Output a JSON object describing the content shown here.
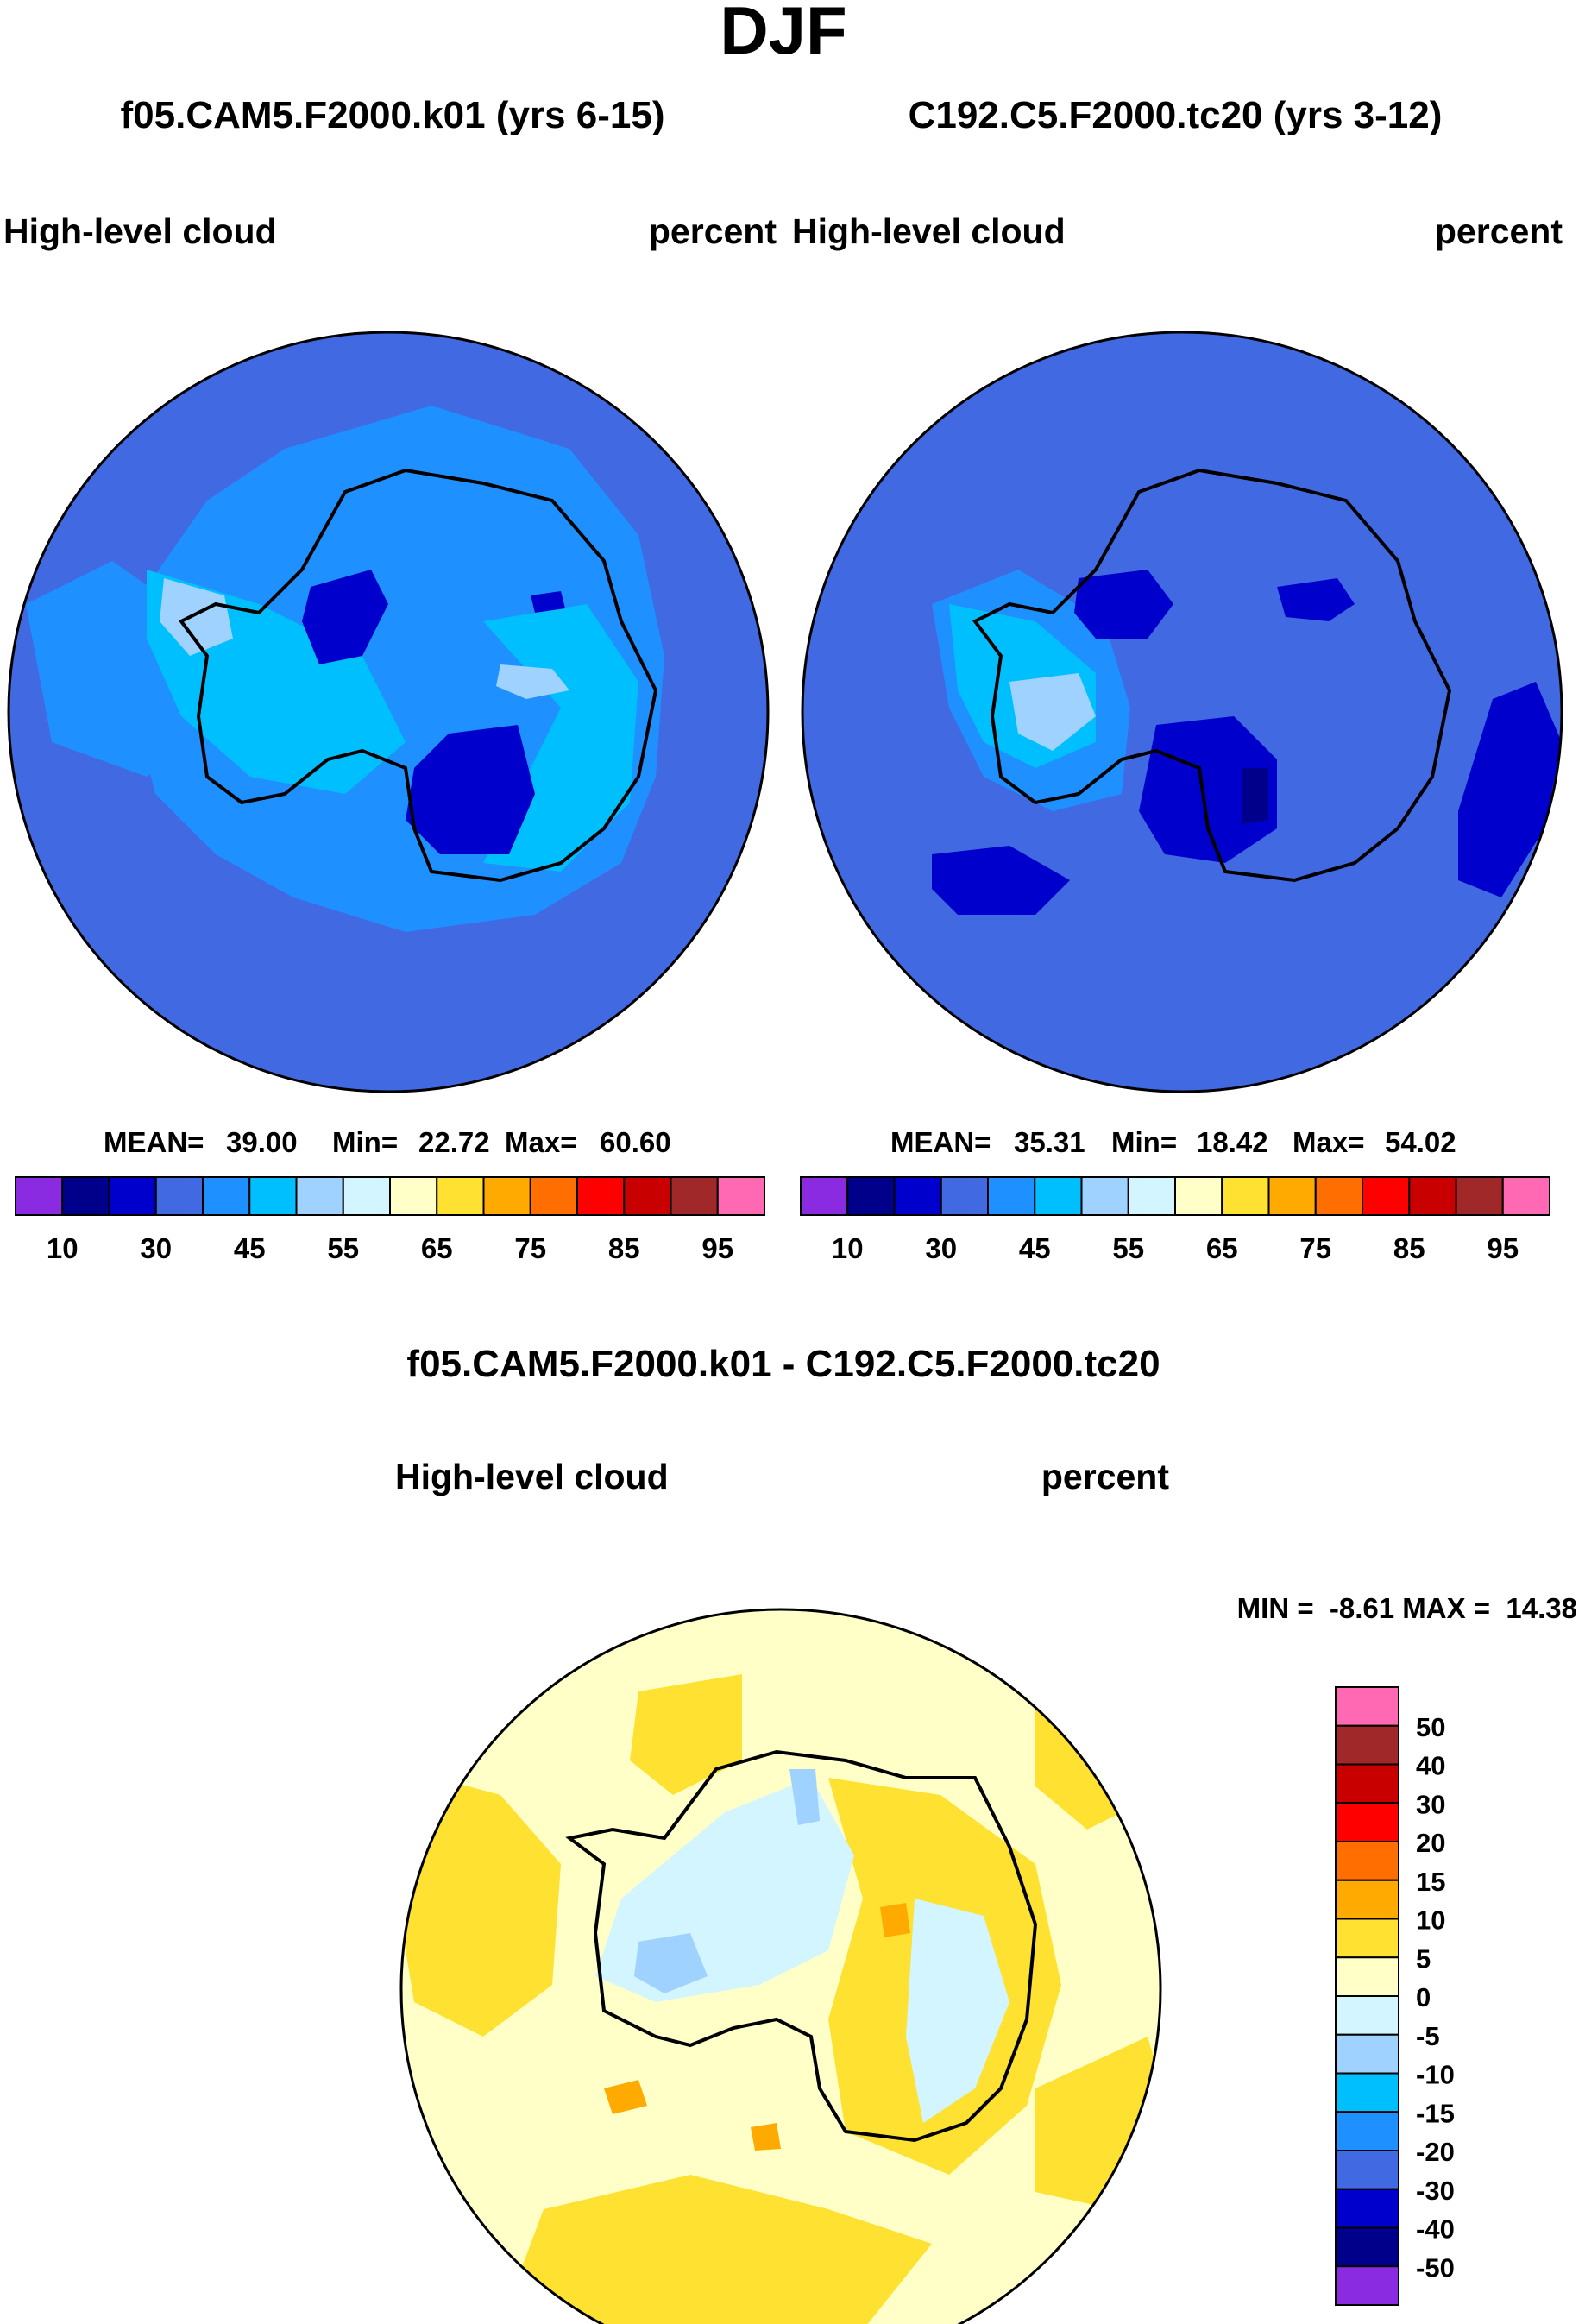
{
  "title": "DJF",
  "chart_data": [
    {
      "type": "heatmap",
      "case": "f05.CAM5.F2000.k01 (yrs 6-15)",
      "variable": "High-level cloud",
      "units": "percent",
      "projection": "south polar stereographic",
      "stats": {
        "mean_label": "MEAN=",
        "mean": "39.00",
        "min_label": "Min=",
        "min": "22.72",
        "max_label": "Max=",
        "max": "60.60"
      },
      "levels": [
        10,
        30,
        45,
        55,
        65,
        75,
        85,
        95
      ],
      "colorbar_labels": [
        "10",
        "30",
        "45",
        "55",
        "65",
        "75",
        "85",
        "95"
      ]
    },
    {
      "type": "heatmap",
      "case": "C192.C5.F2000.tc20 (yrs 3-12)",
      "variable": "High-level cloud",
      "units": "percent",
      "projection": "south polar stereographic",
      "stats": {
        "mean_label": "MEAN=",
        "mean": "35.31",
        "min_label": "Min=",
        "min": "18.42",
        "max_label": "Max=",
        "max": "54.02"
      },
      "levels": [
        10,
        30,
        45,
        55,
        65,
        75,
        85,
        95
      ],
      "colorbar_labels": [
        "10",
        "30",
        "45",
        "55",
        "65",
        "75",
        "85",
        "95"
      ]
    },
    {
      "type": "heatmap",
      "title": "f05.CAM5.F2000.k01 - C192.C5.F2000.tc20",
      "variable": "High-level cloud",
      "units": "percent",
      "projection": "south polar stereographic",
      "stats": {
        "label": "MIN =  -8.61 MAX =  14.38",
        "min": -8.61,
        "max": 14.38
      },
      "levels": [
        -50,
        -40,
        -30,
        -20,
        -15,
        -10,
        -5,
        0,
        5,
        10,
        15,
        20,
        30,
        40,
        50
      ],
      "colorbar_labels": [
        "50",
        "40",
        "30",
        "20",
        "15",
        "10",
        "5",
        "0",
        "-5",
        "-10",
        "-15",
        "-20",
        "-30",
        "-40",
        "-50"
      ]
    }
  ],
  "colors": {
    "abs_palette": [
      "#8a2be2",
      "#00008b",
      "#0000cd",
      "#4169e1",
      "#1e90ff",
      "#00bfff",
      "#a0d2ff",
      "#d2f5ff",
      "#ffffc8",
      "#ffe132",
      "#ffaa00",
      "#ff6e00",
      "#ff0000",
      "#c80000",
      "#a02828",
      "#ff69b4"
    ],
    "diff_palette": [
      "#ff69b4",
      "#a02828",
      "#c80000",
      "#ff0000",
      "#ff6e00",
      "#ffaa00",
      "#ffe132",
      "#ffffc8",
      "#d2f5ff",
      "#a0d2ff",
      "#00bfff",
      "#1e90ff",
      "#4169e1",
      "#0000cd",
      "#00008b",
      "#8a2be2"
    ],
    "coastline": "#000000"
  }
}
